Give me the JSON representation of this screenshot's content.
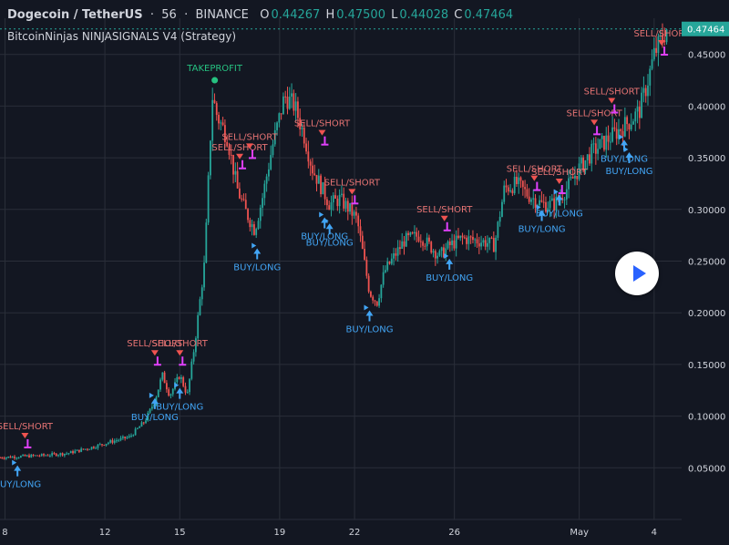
{
  "header": {
    "symbol": "Dogecoin / TetherUS",
    "interval": "56",
    "exchange": "BINANCE",
    "o_label": "O",
    "o_value": "0.44267",
    "h_label": "H",
    "h_value": "0.47500",
    "l_label": "L",
    "l_value": "0.44028",
    "c_label": "C",
    "c_value": "0.47464",
    "indicator": "BitcoinNinjas NINJASIGNALS V4 (Strategy)"
  },
  "colors": {
    "background": "#131722",
    "grid": "#2a2e39",
    "text": "#d1d4dc",
    "up": "#26a69a",
    "down": "#ef5350",
    "sell_label": "#e57373",
    "buy_label": "#42a5f5",
    "take_profit": "#26c281",
    "marker": "#e040fb",
    "price_tag": "#26a69a"
  },
  "chart_data": {
    "type": "candlestick",
    "ylim": [
      0.0,
      0.485
    ],
    "y_ticks": [
      "0.45000",
      "0.40000",
      "0.35000",
      "0.30000",
      "0.25000",
      "0.20000",
      "0.15000",
      "0.10000",
      "0.05000"
    ],
    "y_tick_values": [
      0.45,
      0.4,
      0.35,
      0.3,
      0.25,
      0.2,
      0.15,
      0.1,
      0.05
    ],
    "x_ticks": [
      "8",
      "12",
      "15",
      "19",
      "22",
      "26",
      "May",
      "4"
    ],
    "x_tick_days": [
      8,
      12,
      15,
      19,
      22,
      26,
      31,
      34
    ],
    "x_range_days": [
      7.8,
      35.1
    ],
    "last_price": "0.47464",
    "last_price_value": 0.47464,
    "close_path": [
      [
        7.8,
        0.06
      ],
      [
        9.5,
        0.062
      ],
      [
        10.5,
        0.064
      ],
      [
        11.5,
        0.07
      ],
      [
        12.2,
        0.075
      ],
      [
        13.0,
        0.08
      ],
      [
        13.6,
        0.095
      ],
      [
        14.0,
        0.115
      ],
      [
        14.3,
        0.14
      ],
      [
        14.6,
        0.12
      ],
      [
        15.0,
        0.14
      ],
      [
        15.3,
        0.12
      ],
      [
        15.6,
        0.17
      ],
      [
        16.0,
        0.25
      ],
      [
        16.3,
        0.41
      ],
      [
        16.5,
        0.39
      ],
      [
        16.9,
        0.37
      ],
      [
        17.3,
        0.32
      ],
      [
        17.6,
        0.3
      ],
      [
        18.0,
        0.28
      ],
      [
        18.3,
        0.31
      ],
      [
        18.7,
        0.36
      ],
      [
        19.0,
        0.39
      ],
      [
        19.2,
        0.41
      ],
      [
        19.6,
        0.4
      ],
      [
        20.0,
        0.37
      ],
      [
        20.3,
        0.34
      ],
      [
        20.7,
        0.32
      ],
      [
        21.0,
        0.305
      ],
      [
        21.4,
        0.31
      ],
      [
        21.8,
        0.3
      ],
      [
        22.1,
        0.29
      ],
      [
        22.6,
        0.22
      ],
      [
        22.9,
        0.21
      ],
      [
        23.2,
        0.24
      ],
      [
        23.6,
        0.255
      ],
      [
        24.0,
        0.27
      ],
      [
        24.6,
        0.275
      ],
      [
        25.0,
        0.265
      ],
      [
        25.4,
        0.255
      ],
      [
        25.8,
        0.265
      ],
      [
        26.3,
        0.272
      ],
      [
        26.9,
        0.27
      ],
      [
        27.3,
        0.268
      ],
      [
        27.6,
        0.265
      ],
      [
        28.0,
        0.32
      ],
      [
        28.5,
        0.325
      ],
      [
        28.9,
        0.315
      ],
      [
        29.5,
        0.305
      ],
      [
        30.0,
        0.305
      ],
      [
        30.5,
        0.32
      ],
      [
        31.0,
        0.34
      ],
      [
        31.5,
        0.355
      ],
      [
        32.0,
        0.365
      ],
      [
        32.5,
        0.375
      ],
      [
        33.0,
        0.385
      ],
      [
        33.4,
        0.395
      ],
      [
        33.7,
        0.42
      ],
      [
        34.0,
        0.45
      ],
      [
        34.5,
        0.47464
      ]
    ],
    "series": [
      {
        "name": "Long",
        "values": []
      },
      {
        "name": "Short",
        "values": []
      }
    ]
  },
  "signals": [
    {
      "type": "sell",
      "label": "SELL/SHORT",
      "day": 8.8,
      "price": 0.075
    },
    {
      "type": "buy",
      "label": "BUY/LONG",
      "day": 8.5,
      "price": 0.04
    },
    {
      "type": "sell",
      "label": "SELL/SHORT",
      "day": 14.0,
      "price": 0.155
    },
    {
      "type": "sell",
      "label": "SELL/SHORT",
      "day": 15.0,
      "price": 0.155
    },
    {
      "type": "buy",
      "label": "BUY/LONG",
      "day": 14.0,
      "price": 0.105
    },
    {
      "type": "buy",
      "label": "BUY/LONG",
      "day": 15.0,
      "price": 0.115
    },
    {
      "type": "tp",
      "label": "TAKEPROFIT",
      "day": 16.4,
      "price": 0.425
    },
    {
      "type": "sell",
      "label": "SELL/SHORT",
      "day": 17.4,
      "price": 0.345
    },
    {
      "type": "sell",
      "label": "SELL/SHORT",
      "day": 17.8,
      "price": 0.355
    },
    {
      "type": "buy",
      "label": "BUY/LONG",
      "day": 18.1,
      "price": 0.25
    },
    {
      "type": "sell",
      "label": "SELL/SHORT",
      "day": 20.7,
      "price": 0.368
    },
    {
      "type": "buy",
      "label": "BUY/LONG",
      "day": 20.8,
      "price": 0.28
    },
    {
      "type": "sell",
      "label": "SELL/SHORT",
      "day": 21.9,
      "price": 0.311
    },
    {
      "type": "buy",
      "label": "BUY/LONG",
      "day": 21.0,
      "price": 0.274
    },
    {
      "type": "buy",
      "label": "BUY/LONG",
      "day": 22.6,
      "price": 0.19
    },
    {
      "type": "sell",
      "label": "SELL/SHORT",
      "day": 25.6,
      "price": 0.285
    },
    {
      "type": "buy",
      "label": "BUY/LONG",
      "day": 25.8,
      "price": 0.24
    },
    {
      "type": "sell",
      "label": "SELL/SHORT",
      "day": 29.2,
      "price": 0.324
    },
    {
      "type": "sell",
      "label": "SELL/SHORT",
      "day": 30.2,
      "price": 0.321
    },
    {
      "type": "buy",
      "label": "BUY/LONG",
      "day": 29.5,
      "price": 0.287
    },
    {
      "type": "buy",
      "label": "BUY/LONG",
      "day": 30.2,
      "price": 0.302
    },
    {
      "type": "sell",
      "label": "SELL/SHORT",
      "day": 31.6,
      "price": 0.378
    },
    {
      "type": "sell",
      "label": "SELL/SHORT",
      "day": 32.3,
      "price": 0.399
    },
    {
      "type": "buy",
      "label": "BUY/LONG",
      "day": 32.8,
      "price": 0.355
    },
    {
      "type": "buy",
      "label": "BUY/LONG",
      "day": 33.0,
      "price": 0.343
    },
    {
      "type": "sell",
      "label": "SELL/SHORT",
      "day": 34.3,
      "price": 0.455
    }
  ]
}
